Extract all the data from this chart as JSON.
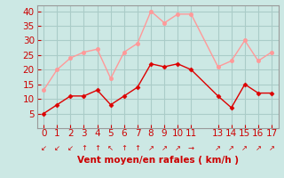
{
  "x": [
    0,
    1,
    2,
    3,
    4,
    5,
    6,
    7,
    8,
    9,
    10,
    11,
    13,
    14,
    15,
    16,
    17
  ],
  "vent_moyen": [
    5,
    8,
    11,
    11,
    13,
    8,
    11,
    14,
    22,
    21,
    22,
    20,
    11,
    7,
    15,
    12,
    12
  ],
  "rafales": [
    13,
    20,
    24,
    26,
    27,
    17,
    26,
    29,
    40,
    36,
    39,
    39,
    21,
    23,
    30,
    23,
    26
  ],
  "arrow_chars": [
    "↙",
    "↙",
    "↙",
    "↑",
    "↑",
    "↖",
    "↑",
    "↑",
    "↗",
    "↗",
    "↗",
    "→",
    "↗",
    "↗",
    "↗",
    "↗",
    "↗"
  ],
  "xlabel": "Vent moyen/en rafales ( km/h )",
  "ylim": [
    0,
    42
  ],
  "xlim": [
    -0.5,
    17.5
  ],
  "yticks": [
    5,
    10,
    15,
    20,
    25,
    30,
    35,
    40
  ],
  "ytick_labels": [
    "5",
    "10",
    "15",
    "20",
    "25",
    "30",
    "35",
    "40"
  ],
  "xticks": [
    0,
    1,
    2,
    3,
    4,
    5,
    6,
    7,
    8,
    9,
    10,
    11,
    13,
    14,
    15,
    16,
    17
  ],
  "line_color_moyen": "#dd0000",
  "line_color_rafales": "#ff9999",
  "bg_color": "#cce8e4",
  "grid_color": "#aaccc8",
  "tick_color": "#cc0000",
  "label_color": "#cc0000",
  "marker_size": 3,
  "font_size": 7.5
}
